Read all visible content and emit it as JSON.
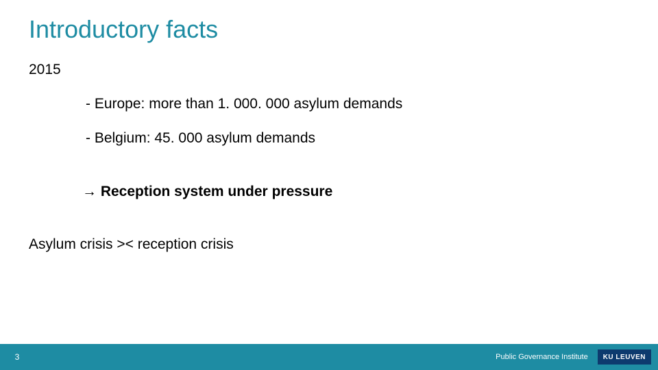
{
  "colors": {
    "accent": "#1e8ca3",
    "footer_bg": "#1e8ca3",
    "logo_bg": "#0d3a6e",
    "logo_text": "#ffffff",
    "text": "#000000",
    "white": "#ffffff"
  },
  "typography": {
    "title_fontsize": 36,
    "body_fontsize": 21,
    "footer_fontsize": 11,
    "page_num_fontsize": 12,
    "logo_fontsize": 10,
    "font_family": "Arial, Helvetica, sans-serif"
  },
  "title": "Introductory facts",
  "year": "2015",
  "bullets": [
    "- Europe: more than 1. 000. 000 asylum demands",
    "- Belgium: 45. 000 asylum demands"
  ],
  "conclusion": "→ Reception system under pressure",
  "crisis_line": "Asylum crisis >< reception crisis",
  "footer": {
    "page_number": "3",
    "institute": "Public Governance Institute",
    "logo_text": "KU LEUVEN"
  }
}
